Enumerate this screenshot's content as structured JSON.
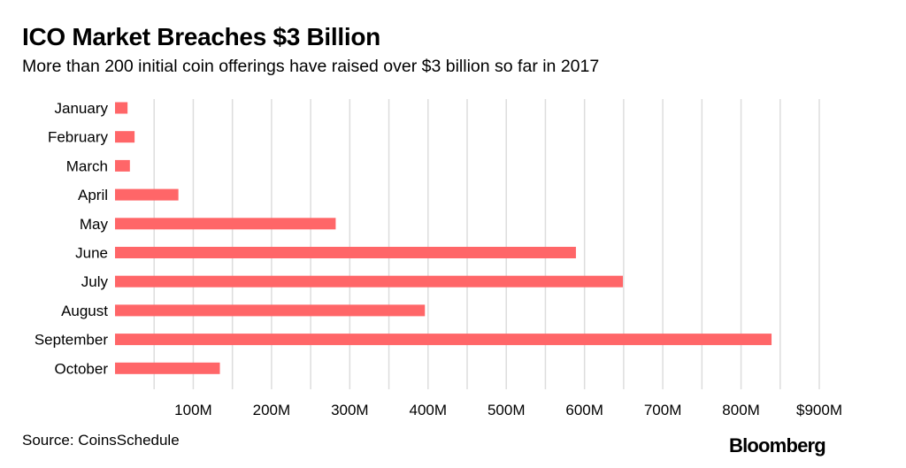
{
  "chart_data": {
    "type": "bar",
    "orientation": "horizontal",
    "title": "ICO Market Breaches $3 Billion",
    "subtitle": "More than 200 initial coin offerings have raised over $3 billion so far in 2017",
    "categories": [
      "January",
      "February",
      "March",
      "April",
      "May",
      "June",
      "July",
      "August",
      "September",
      "October"
    ],
    "values": [
      16,
      25,
      19,
      81,
      282,
      589,
      649,
      396,
      839,
      134
    ],
    "unit": "USD millions",
    "xlim": [
      0,
      900
    ],
    "xticks": [
      100,
      200,
      300,
      400,
      500,
      600,
      700,
      800,
      900
    ],
    "xtick_labels": [
      "100M",
      "200M",
      "300M",
      "400M",
      "500M",
      "600M",
      "700M",
      "800M",
      "$900M"
    ],
    "grid_step": 50,
    "grid": true,
    "bar_color": "#ff6668",
    "grid_color": "#dddddd",
    "xlabel": "",
    "ylabel": ""
  },
  "footer": {
    "source": "Source: CoinsSchedule",
    "logo": "Bloomberg"
  }
}
